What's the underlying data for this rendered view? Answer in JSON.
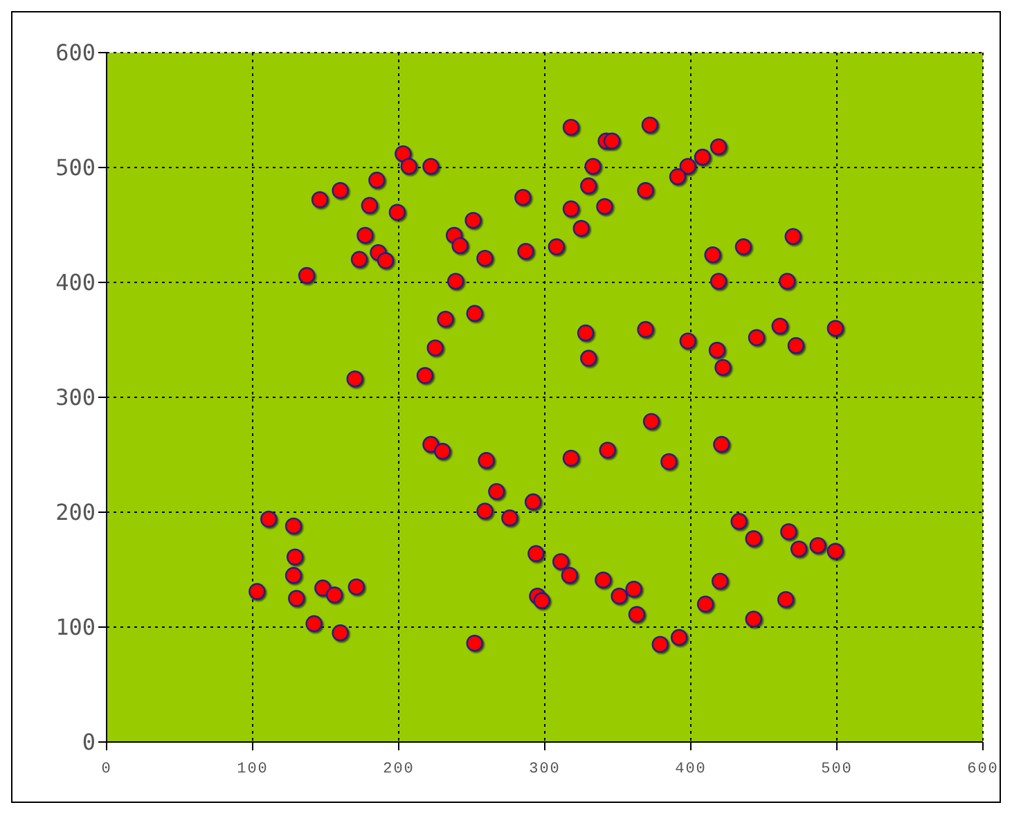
{
  "chart_data": {
    "type": "scatter",
    "x": [
      146,
      160,
      137,
      185,
      180,
      177,
      173,
      186,
      191,
      199,
      203,
      207,
      222,
      238,
      242,
      239,
      259,
      251,
      252,
      232,
      225,
      170,
      218,
      318,
      372,
      342,
      346,
      419,
      408,
      398,
      391,
      333,
      330,
      318,
      285,
      287,
      308,
      325,
      341,
      369,
      415,
      436,
      470,
      419,
      466,
      328,
      330,
      369,
      398,
      418,
      422,
      445,
      461,
      472,
      499,
      222,
      230,
      260,
      318,
      343,
      373,
      385,
      421,
      267,
      259,
      276,
      292,
      294,
      311,
      317,
      295,
      298,
      340,
      351,
      361,
      363,
      379,
      392,
      410,
      420,
      433,
      443,
      443,
      465,
      467,
      474,
      487,
      499,
      252,
      103,
      111,
      128,
      129,
      128,
      130,
      142,
      148,
      156,
      160,
      171
    ],
    "values": [
      472,
      480,
      406,
      489,
      467,
      441,
      420,
      426,
      419,
      461,
      512,
      501,
      501,
      441,
      432,
      401,
      421,
      454,
      373,
      368,
      343,
      316,
      319,
      535,
      537,
      523,
      523,
      518,
      509,
      501,
      492,
      501,
      484,
      464,
      474,
      427,
      431,
      447,
      466,
      480,
      424,
      431,
      440,
      401,
      401,
      356,
      334,
      359,
      349,
      341,
      326,
      352,
      362,
      345,
      360,
      259,
      253,
      245,
      247,
      254,
      279,
      244,
      259,
      218,
      201,
      195,
      209,
      164,
      157,
      145,
      127,
      123,
      141,
      127,
      133,
      111,
      85,
      91,
      120,
      140,
      192,
      177,
      107,
      124,
      183,
      168,
      171,
      166,
      86,
      131,
      194,
      188,
      161,
      145,
      125,
      103,
      134,
      128,
      95,
      135
    ],
    "color": "#ff0000",
    "xlim": [
      0,
      600
    ],
    "xticks": [
      0,
      100,
      200,
      300,
      400,
      500,
      600
    ],
    "ylim": [
      0,
      600
    ],
    "yticks": [
      0,
      100,
      200,
      300,
      400,
      500,
      600
    ],
    "grid": true,
    "marker": "circle"
  }
}
